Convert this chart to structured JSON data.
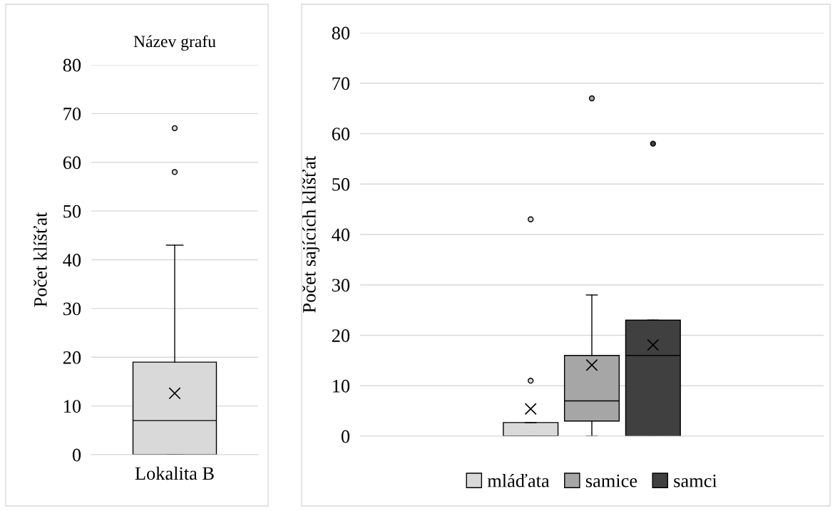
{
  "chart_data": [
    {
      "type": "box",
      "title": "Název grafu",
      "ylabel": "Počet klíšťat",
      "categories": [
        "Lokalita B"
      ],
      "color": "#d9d9d9",
      "ylim": [
        0,
        80
      ],
      "yticks": [
        0,
        10,
        20,
        30,
        40,
        50,
        60,
        70,
        80
      ],
      "grid": "y",
      "marker": "cross",
      "boxes": [
        {
          "low": 0,
          "q1": 0,
          "median": 7,
          "q3": 19,
          "high": 43,
          "mean": 12.6,
          "outliers": [
            58,
            67
          ]
        }
      ]
    },
    {
      "type": "box",
      "ylabel": "Počet sajících klíšťat",
      "categories": [
        null
      ],
      "ylim": [
        0,
        80
      ],
      "yticks": [
        0,
        10,
        20,
        30,
        40,
        50,
        60,
        70,
        80
      ],
      "grid": "y",
      "marker": "cross",
      "legend": "bottom",
      "series": [
        {
          "name": "mláďata",
          "color": "#d9d9d9",
          "boxes": [
            {
              "low": 0,
              "q1": 0,
              "median": 0,
              "q3": 2.7,
              "high": 2.7,
              "mean": 5.4,
              "outliers": [
                11,
                43
              ]
            }
          ]
        },
        {
          "name": "samice",
          "color": "#a6a6a6",
          "boxes": [
            {
              "low": 0,
              "q1": 3,
              "median": 7,
              "q3": 16,
              "high": 28,
              "mean": 14.1,
              "outliers": [
                67
              ]
            }
          ]
        },
        {
          "name": "samci",
          "color": "#404040",
          "boxes": [
            {
              "low": 0,
              "q1": 0,
              "median": 16,
              "q3": 23,
              "high": 23,
              "mean": 18.1,
              "outliers": [
                58
              ]
            }
          ]
        }
      ]
    }
  ]
}
